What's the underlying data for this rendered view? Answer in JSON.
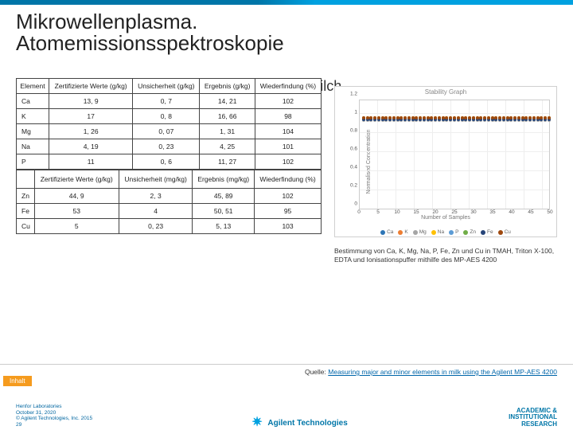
{
  "title_l1": "Mikrowellenplasma.",
  "title_l2": "Atomemissionsspektroskopie",
  "subtitle": "Messung von Haupt- und Nebenelementen in Milch",
  "table1": {
    "headers": [
      "Element",
      "Zertifizierte Werte (g/kg)",
      "Unsicherheit (g/kg)",
      "Ergebnis (g/kg)",
      "Wiederfindung (%)"
    ],
    "rows": [
      [
        "Ca",
        "13, 9",
        "0, 7",
        "14, 21",
        "102"
      ],
      [
        "K",
        "17",
        "0, 8",
        "16, 66",
        "98"
      ],
      [
        "Mg",
        "1, 26",
        "0, 07",
        "1, 31",
        "104"
      ],
      [
        "Na",
        "4, 19",
        "0, 23",
        "4, 25",
        "101"
      ],
      [
        "P",
        "11",
        "0, 6",
        "11, 27",
        "102"
      ]
    ]
  },
  "table2": {
    "headers": [
      "",
      "Zertifizierte Werte (g/kg)",
      "Unsicherheit (mg/kg)",
      "Ergebnis (mg/kg)",
      "Wiederfindung (%)"
    ],
    "rows": [
      [
        "Zn",
        "44, 9",
        "2, 3",
        "45, 89",
        "102"
      ],
      [
        "Fe",
        "53",
        "4",
        "50, 51",
        "95"
      ],
      [
        "Cu",
        "5",
        "0, 23",
        "5, 13",
        "103"
      ]
    ]
  },
  "chart": {
    "title": "Stability Graph",
    "ylabel": "Normalised Concentration",
    "xlabel": "Number of Samples",
    "ylim": [
      0,
      1.2
    ],
    "yticks": [
      "0",
      "0.2",
      "0.4",
      "0.6",
      "0.8",
      "1",
      "1.2"
    ],
    "xticks": [
      "0",
      "5",
      "10",
      "15",
      "20",
      "25",
      "30",
      "35",
      "40",
      "45",
      "50"
    ],
    "series": [
      {
        "label": "Ca",
        "color": "#2e75b6",
        "y": 1.0
      },
      {
        "label": "K",
        "color": "#ed7d31",
        "y": 1.0
      },
      {
        "label": "Mg",
        "color": "#a5a5a5",
        "y": 0.98
      },
      {
        "label": "Na",
        "color": "#ffc000",
        "y": 1.01
      },
      {
        "label": "P",
        "color": "#5b9bd5",
        "y": 1.0
      },
      {
        "label": "Zn",
        "color": "#70ad47",
        "y": 1.0
      },
      {
        "label": "Fe",
        "color": "#264478",
        "y": 0.99
      },
      {
        "label": "Cu",
        "color": "#9e480e",
        "y": 1.01
      }
    ],
    "n_points": 50
  },
  "caption": "Bestimmung von Ca, K, Mg, Na, P, Fe, Zn und Cu in TMAH, Triton X-100, EDTA und Ionisationspuffer mithilfe des MP-AES 4200",
  "source_prefix": "Quelle: ",
  "source_link": "Measuring major and minor elements in milk using the Agilent MP-AES 4200",
  "inhalt": "Inhalt",
  "footer": {
    "l1": "Henfor Laboratories",
    "l2": "October 31, 2020",
    "l3": "© Agilent Technologies, Inc. 2015",
    "l4": "29",
    "brand": "Agilent Technologies",
    "right1": "ACADEMIC &",
    "right2": "INSTITUTIONAL",
    "right3": "RESEARCH"
  }
}
